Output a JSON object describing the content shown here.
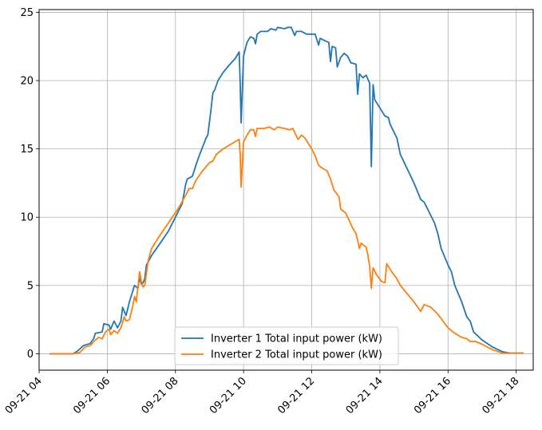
{
  "chart_data": {
    "type": "line",
    "title": "",
    "xlabel": "",
    "ylabel": "",
    "xlim": [
      4.0,
      18.5
    ],
    "ylim": [
      -1.2,
      25.2
    ],
    "grid": true,
    "legend_position": "lower-center",
    "x_ticks": [
      {
        "value": 4,
        "label": "09-21 04"
      },
      {
        "value": 6,
        "label": "09-21 06"
      },
      {
        "value": 8,
        "label": "09-21 08"
      },
      {
        "value": 10,
        "label": "09-21 10"
      },
      {
        "value": 12,
        "label": "09-21 12"
      },
      {
        "value": 14,
        "label": "09-21 14"
      },
      {
        "value": 16,
        "label": "09-21 16"
      },
      {
        "value": 18,
        "label": "09-21 18"
      }
    ],
    "y_ticks": [
      {
        "value": 0,
        "label": "0"
      },
      {
        "value": 5,
        "label": "5"
      },
      {
        "value": 10,
        "label": "10"
      },
      {
        "value": 15,
        "label": "15"
      },
      {
        "value": 20,
        "label": "20"
      },
      {
        "value": 25,
        "label": "25"
      }
    ],
    "series": [
      {
        "name": "Inverter 1 Total input power (kW)",
        "color": "#1f77b4",
        "points": [
          [
            4.33,
            0
          ],
          [
            5.0,
            0
          ],
          [
            5.15,
            0.25
          ],
          [
            5.3,
            0.6
          ],
          [
            5.5,
            0.75
          ],
          [
            5.6,
            1.1
          ],
          [
            5.65,
            1.5
          ],
          [
            5.85,
            1.6
          ],
          [
            5.9,
            2.2
          ],
          [
            6.05,
            2.1
          ],
          [
            6.1,
            1.8
          ],
          [
            6.2,
            2.4
          ],
          [
            6.3,
            1.9
          ],
          [
            6.4,
            2.4
          ],
          [
            6.45,
            3.4
          ],
          [
            6.55,
            2.8
          ],
          [
            6.65,
            3.8
          ],
          [
            6.75,
            4.6
          ],
          [
            6.8,
            5.0
          ],
          [
            6.9,
            4.8
          ],
          [
            6.95,
            5.6
          ],
          [
            7.0,
            5.1
          ],
          [
            7.05,
            5.2
          ],
          [
            7.1,
            5.5
          ],
          [
            7.15,
            6.5
          ],
          [
            7.3,
            7.2
          ],
          [
            7.5,
            7.9
          ],
          [
            7.8,
            9.0
          ],
          [
            8.1,
            10.5
          ],
          [
            8.2,
            11.0
          ],
          [
            8.3,
            12.4
          ],
          [
            8.35,
            12.8
          ],
          [
            8.5,
            13.0
          ],
          [
            8.6,
            13.8
          ],
          [
            8.7,
            14.5
          ],
          [
            8.9,
            15.8
          ],
          [
            8.95,
            16.0
          ],
          [
            9.05,
            18.0
          ],
          [
            9.1,
            19.1
          ],
          [
            9.15,
            19.3
          ],
          [
            9.25,
            20.0
          ],
          [
            9.4,
            20.6
          ],
          [
            9.6,
            21.2
          ],
          [
            9.75,
            21.6
          ],
          [
            9.87,
            22.1
          ],
          [
            9.9,
            19.8
          ],
          [
            9.93,
            16.9
          ],
          [
            10.0,
            21.8
          ],
          [
            10.1,
            22.8
          ],
          [
            10.2,
            23.2
          ],
          [
            10.3,
            23.1
          ],
          [
            10.35,
            22.7
          ],
          [
            10.4,
            23.4
          ],
          [
            10.5,
            23.6
          ],
          [
            10.7,
            23.6
          ],
          [
            10.8,
            23.8
          ],
          [
            10.95,
            23.7
          ],
          [
            11.0,
            23.9
          ],
          [
            11.2,
            23.8
          ],
          [
            11.3,
            23.9
          ],
          [
            11.4,
            23.9
          ],
          [
            11.5,
            23.3
          ],
          [
            11.55,
            23.6
          ],
          [
            11.7,
            23.6
          ],
          [
            11.85,
            23.4
          ],
          [
            12.1,
            23.4
          ],
          [
            12.2,
            22.6
          ],
          [
            12.25,
            23.1
          ],
          [
            12.4,
            22.9
          ],
          [
            12.5,
            22.8
          ],
          [
            12.55,
            21.4
          ],
          [
            12.6,
            22.5
          ],
          [
            12.7,
            22.4
          ],
          [
            12.75,
            21.0
          ],
          [
            12.85,
            21.7
          ],
          [
            12.95,
            22.0
          ],
          [
            13.05,
            21.8
          ],
          [
            13.15,
            21.3
          ],
          [
            13.3,
            21.2
          ],
          [
            13.35,
            19.0
          ],
          [
            13.4,
            20.5
          ],
          [
            13.5,
            20.2
          ],
          [
            13.6,
            20.4
          ],
          [
            13.7,
            19.8
          ],
          [
            13.75,
            13.7
          ],
          [
            13.8,
            19.7
          ],
          [
            13.85,
            18.6
          ],
          [
            14.0,
            18.0
          ],
          [
            14.05,
            17.8
          ],
          [
            14.15,
            17.4
          ],
          [
            14.25,
            17.3
          ],
          [
            14.3,
            16.8
          ],
          [
            14.5,
            15.8
          ],
          [
            14.6,
            14.6
          ],
          [
            15.0,
            12.5
          ],
          [
            15.2,
            11.3
          ],
          [
            15.3,
            11.1
          ],
          [
            15.5,
            10.1
          ],
          [
            15.6,
            9.6
          ],
          [
            15.7,
            8.8
          ],
          [
            15.8,
            7.7
          ],
          [
            15.85,
            7.4
          ],
          [
            16.0,
            6.5
          ],
          [
            16.1,
            6.0
          ],
          [
            16.2,
            5.0
          ],
          [
            16.4,
            3.8
          ],
          [
            16.55,
            2.7
          ],
          [
            16.65,
            2.4
          ],
          [
            16.75,
            1.6
          ],
          [
            17.0,
            1.0
          ],
          [
            17.3,
            0.5
          ],
          [
            17.6,
            0.15
          ],
          [
            17.8,
            0.05
          ],
          [
            18.2,
            0.05
          ]
        ]
      },
      {
        "name": "Inverter 2 Total input power (kW)",
        "color": "#ff7f0e",
        "points": [
          [
            4.33,
            0
          ],
          [
            5.0,
            0
          ],
          [
            5.2,
            0.1
          ],
          [
            5.35,
            0.5
          ],
          [
            5.5,
            0.6
          ],
          [
            5.65,
            1.0
          ],
          [
            5.75,
            1.2
          ],
          [
            5.85,
            1.1
          ],
          [
            5.95,
            1.6
          ],
          [
            6.05,
            1.8
          ],
          [
            6.1,
            1.4
          ],
          [
            6.2,
            1.7
          ],
          [
            6.3,
            1.5
          ],
          [
            6.4,
            1.9
          ],
          [
            6.5,
            2.7
          ],
          [
            6.55,
            2.4
          ],
          [
            6.65,
            2.5
          ],
          [
            6.75,
            3.5
          ],
          [
            6.8,
            4.2
          ],
          [
            6.85,
            3.8
          ],
          [
            6.95,
            6.0
          ],
          [
            7.0,
            5.3
          ],
          [
            7.05,
            4.9
          ],
          [
            7.1,
            5.0
          ],
          [
            7.2,
            6.8
          ],
          [
            7.3,
            7.7
          ],
          [
            7.5,
            8.5
          ],
          [
            7.8,
            9.6
          ],
          [
            8.1,
            10.7
          ],
          [
            8.3,
            11.6
          ],
          [
            8.4,
            12.1
          ],
          [
            8.5,
            12.1
          ],
          [
            8.6,
            12.7
          ],
          [
            8.8,
            13.4
          ],
          [
            9.0,
            14.0
          ],
          [
            9.1,
            14.1
          ],
          [
            9.2,
            14.6
          ],
          [
            9.4,
            15.0
          ],
          [
            9.6,
            15.3
          ],
          [
            9.8,
            15.6
          ],
          [
            9.87,
            15.7
          ],
          [
            9.9,
            14.6
          ],
          [
            9.93,
            12.2
          ],
          [
            10.0,
            15.5
          ],
          [
            10.1,
            16.0
          ],
          [
            10.2,
            16.4
          ],
          [
            10.3,
            16.4
          ],
          [
            10.35,
            15.9
          ],
          [
            10.4,
            16.5
          ],
          [
            10.6,
            16.5
          ],
          [
            10.75,
            16.6
          ],
          [
            10.9,
            16.4
          ],
          [
            11.0,
            16.6
          ],
          [
            11.2,
            16.5
          ],
          [
            11.35,
            16.4
          ],
          [
            11.45,
            16.5
          ],
          [
            11.5,
            16.2
          ],
          [
            11.6,
            15.7
          ],
          [
            11.7,
            16.0
          ],
          [
            11.8,
            15.8
          ],
          [
            12.0,
            15.0
          ],
          [
            12.1,
            14.5
          ],
          [
            12.2,
            13.8
          ],
          [
            12.3,
            13.6
          ],
          [
            12.45,
            13.4
          ],
          [
            12.55,
            12.8
          ],
          [
            12.65,
            12.0
          ],
          [
            12.8,
            11.5
          ],
          [
            12.85,
            10.6
          ],
          [
            13.0,
            10.3
          ],
          [
            13.2,
            9.2
          ],
          [
            13.3,
            8.8
          ],
          [
            13.35,
            8.3
          ],
          [
            13.4,
            7.7
          ],
          [
            13.45,
            8.1
          ],
          [
            13.6,
            7.8
          ],
          [
            13.65,
            7.2
          ],
          [
            13.7,
            6.4
          ],
          [
            13.75,
            4.8
          ],
          [
            13.8,
            6.3
          ],
          [
            13.9,
            5.8
          ],
          [
            14.05,
            5.3
          ],
          [
            14.15,
            5.2
          ],
          [
            14.2,
            6.6
          ],
          [
            14.35,
            6.0
          ],
          [
            14.5,
            5.5
          ],
          [
            14.6,
            5.0
          ],
          [
            14.8,
            4.4
          ],
          [
            15.0,
            3.8
          ],
          [
            15.2,
            3.1
          ],
          [
            15.3,
            3.6
          ],
          [
            15.5,
            3.4
          ],
          [
            15.7,
            2.9
          ],
          [
            15.85,
            2.4
          ],
          [
            16.0,
            1.9
          ],
          [
            16.2,
            1.5
          ],
          [
            16.4,
            1.2
          ],
          [
            16.55,
            1.1
          ],
          [
            16.65,
            0.9
          ],
          [
            16.8,
            0.9
          ],
          [
            17.0,
            0.7
          ],
          [
            17.3,
            0.3
          ],
          [
            17.6,
            0.05
          ],
          [
            18.2,
            0.05
          ]
        ]
      }
    ]
  }
}
